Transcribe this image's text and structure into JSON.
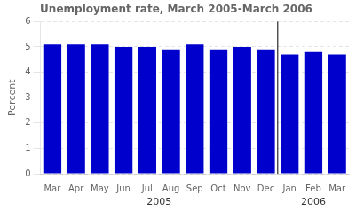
{
  "chart_data": {
    "type": "bar",
    "title": "Unemployment rate, March 2005-March 2006",
    "ylabel": "Percent",
    "categories": [
      "Mar",
      "Apr",
      "May",
      "Jun",
      "Jul",
      "Aug",
      "Sep",
      "Oct",
      "Nov",
      "Dec",
      "Jan",
      "Feb",
      "Mar"
    ],
    "values": [
      5.1,
      5.1,
      5.1,
      5.0,
      5.0,
      4.9,
      5.1,
      4.9,
      5.0,
      4.9,
      4.7,
      4.8,
      4.7
    ],
    "color": "#0000CC",
    "ylim": [
      0,
      6
    ],
    "yticks": [
      0,
      1,
      2,
      3,
      4,
      5,
      6
    ],
    "grid": true,
    "annotations": [
      {
        "text": "2005",
        "x": 4.5
      },
      {
        "text": "2006",
        "x": 11.0
      },
      {
        "type": "line",
        "x": 9.5
      }
    ]
  }
}
